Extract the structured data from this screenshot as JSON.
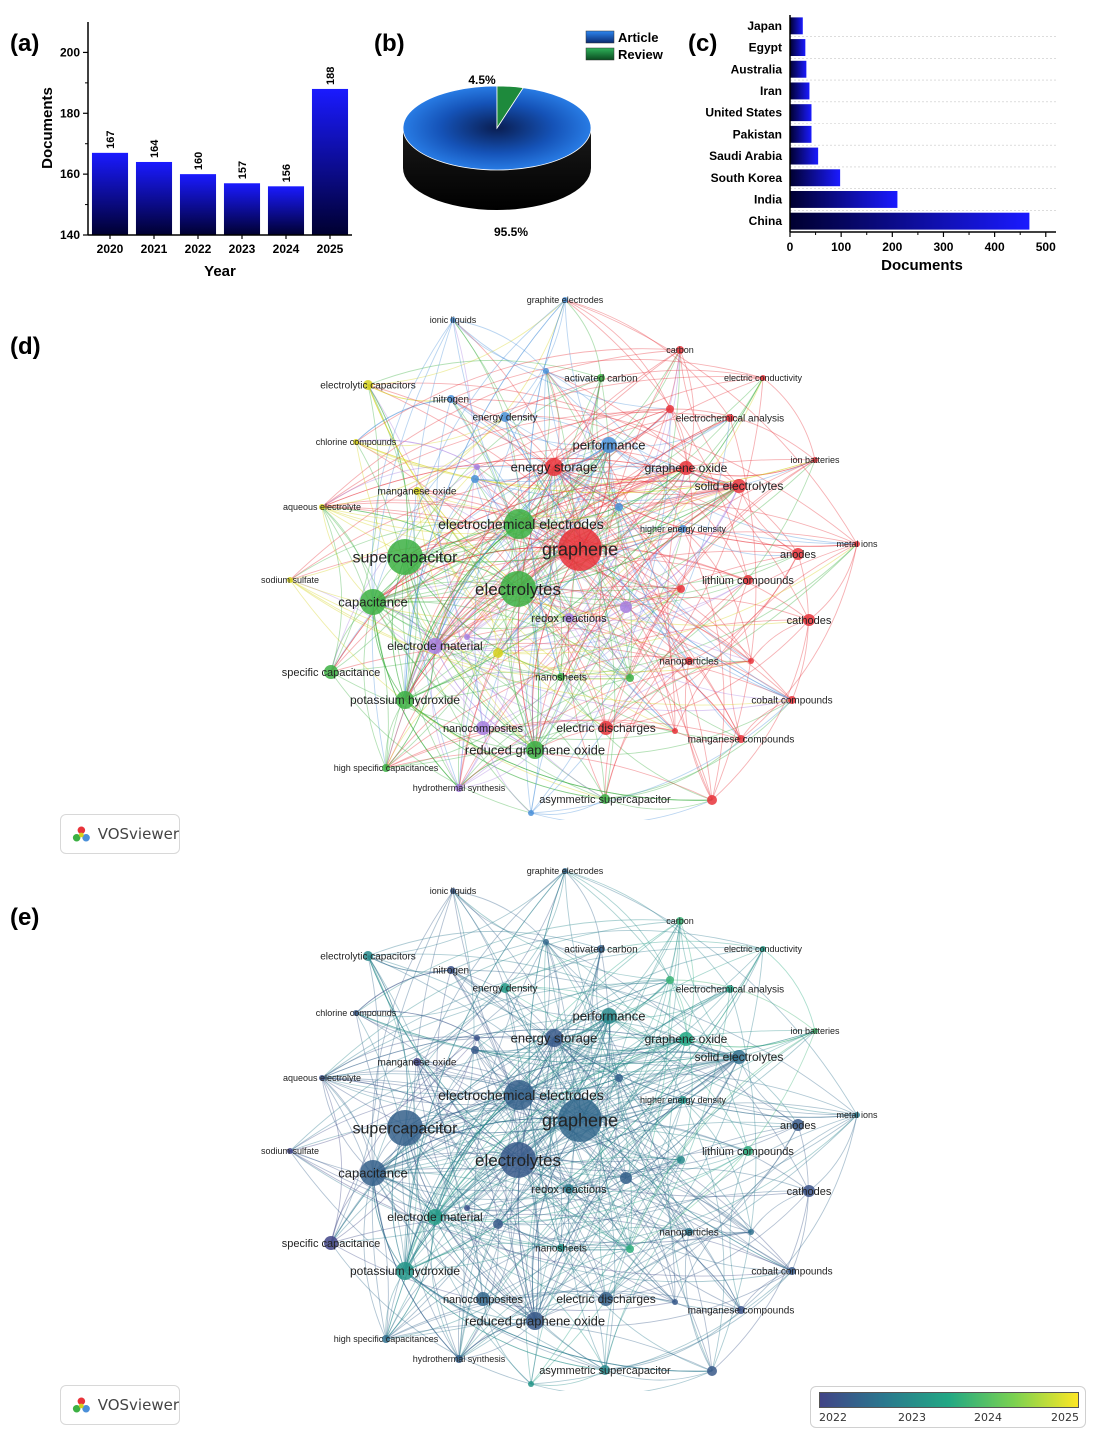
{
  "panels": {
    "a": "(a)",
    "b": "(b)",
    "c": "(c)",
    "d": "(d)",
    "e": "(e)"
  },
  "colors": {
    "bar_top": "#1a1aff",
    "bar_bottom": "#000030",
    "article": "#1565d8",
    "review": "#1e8a3c",
    "cluster_red": "#e8333a",
    "cluster_green": "#3cb043",
    "cluster_blue": "#4a90d9",
    "cluster_yellow": "#d4d11c",
    "cluster_purple": "#a77fe0",
    "viridis_2022": "#414487",
    "viridis_2023": "#2a788e",
    "viridis_2024": "#22a884",
    "viridis_2025": "#fde725"
  },
  "chart_data": [
    {
      "type": "bar",
      "categories": [
        "2020",
        "2021",
        "2022",
        "2023",
        "2024",
        "2025"
      ],
      "values": [
        167,
        164,
        160,
        157,
        156,
        188
      ],
      "xlabel": "Year",
      "ylabel": "Documents",
      "ylim": [
        140,
        210
      ],
      "yticks": [
        140,
        160,
        180,
        200
      ]
    },
    {
      "type": "pie",
      "labels": [
        "Article",
        "Review"
      ],
      "values": [
        95.5,
        4.5
      ],
      "value_labels": [
        "95.5%",
        "4.5%"
      ],
      "legend": "top-right"
    },
    {
      "type": "bar",
      "orientation": "horizontal",
      "categories": [
        "Japan",
        "Egypt",
        "Australia",
        "Iran",
        "United States",
        "Pakistan",
        "Saudi Arabia",
        "South Korea",
        "India",
        "China"
      ],
      "values": [
        25,
        30,
        32,
        38,
        42,
        42,
        55,
        98,
        210,
        468
      ],
      "xlabel": "Documents",
      "xlim": [
        0,
        520
      ],
      "xticks": [
        0,
        100,
        200,
        300,
        400,
        500
      ]
    }
  ],
  "network": {
    "logo_text": "VOSviewer",
    "colorbar_ticks": [
      "2022",
      "2023",
      "2024",
      "2025"
    ],
    "nodes": [
      {
        "label": "graphene",
        "c": "red",
        "y": 2022.5
      },
      {
        "label": "electrolytes",
        "c": "green",
        "y": 2022.3
      },
      {
        "label": "supercapacitor",
        "c": "green",
        "y": 2022.4
      },
      {
        "label": "electrochemical electrodes",
        "c": "green",
        "y": 2022.4
      },
      {
        "label": "capacitance",
        "c": "green",
        "y": 2022.4
      },
      {
        "label": "energy storage",
        "c": "red",
        "y": 2022.3
      },
      {
        "label": "performance",
        "c": "blue",
        "y": 2023.0
      },
      {
        "label": "graphene oxide",
        "c": "red",
        "y": 2023.5
      },
      {
        "label": "solid electrolytes",
        "c": "red",
        "y": 2022.6
      },
      {
        "label": "anodes",
        "c": "red",
        "y": 2022.3
      },
      {
        "label": "lithium compounds",
        "c": "red",
        "y": 2023.6
      },
      {
        "label": "cathodes",
        "c": "red",
        "y": 2022.2
      },
      {
        "label": "electrode material",
        "c": "purple",
        "y": 2023.3
      },
      {
        "label": "potassium hydroxide",
        "c": "green",
        "y": 2023.2
      },
      {
        "label": "specific capacitance",
        "c": "green",
        "y": 2021.9
      },
      {
        "label": "reduced graphene oxide",
        "c": "green",
        "y": 2022.3
      },
      {
        "label": "nanocomposites",
        "c": "purple",
        "y": 2022.5
      },
      {
        "label": "electric discharges",
        "c": "red",
        "y": 2022.4
      },
      {
        "label": "redox reactions",
        "c": "purple",
        "y": 2022.8
      },
      {
        "label": "nanosheets",
        "c": "green",
        "y": 2023.2
      },
      {
        "label": "nanoparticles",
        "c": "red",
        "y": 2022.7
      },
      {
        "label": "cobalt compounds",
        "c": "red",
        "y": 2022.3
      },
      {
        "label": "manganese compounds",
        "c": "red",
        "y": 2022.2
      },
      {
        "label": "asymmetric supercapacitor",
        "c": "green",
        "y": 2023.0
      },
      {
        "label": "hydrothermal synthesis",
        "c": "purple",
        "y": 2022.4
      },
      {
        "label": "high specific capacitances",
        "c": "green",
        "y": 2022.6
      },
      {
        "label": "sodium sulfate",
        "c": "yellow",
        "y": 2021.8
      },
      {
        "label": "aqueous electrolyte",
        "c": "yellow",
        "y": 2022.2
      },
      {
        "label": "manganese oxide",
        "c": "yellow",
        "y": 2022.0
      },
      {
        "label": "chlorine compounds",
        "c": "yellow",
        "y": 2022.3
      },
      {
        "label": "electrolytic capacitors",
        "c": "yellow",
        "y": 2023.0
      },
      {
        "label": "nitrogen",
        "c": "blue",
        "y": 2022.2
      },
      {
        "label": "energy density",
        "c": "blue",
        "y": 2023.3
      },
      {
        "label": "ionic liquids",
        "c": "blue",
        "y": 2022.3
      },
      {
        "label": "graphite electrodes",
        "c": "blue",
        "y": 2022.5
      },
      {
        "label": "activated carbon",
        "c": "green",
        "y": 2022.4
      },
      {
        "label": "carbon",
        "c": "red",
        "y": 2023.7
      },
      {
        "label": "electric conductivity",
        "c": "red",
        "y": 2023.3
      },
      {
        "label": "electrochemical analysis",
        "c": "red",
        "y": 2023.4
      },
      {
        "label": "ion batteries",
        "c": "red",
        "y": 2023.8
      },
      {
        "label": "higher energy density",
        "c": "blue",
        "y": 2023.2
      },
      {
        "label": "metal ions",
        "c": "red",
        "y": 2022.8
      },
      {
        "label": "",
        "c": "blue",
        "y": 2022.5
      },
      {
        "label": "",
        "c": "blue",
        "y": 2022.3
      },
      {
        "label": "",
        "c": "purple",
        "y": 2022.2
      },
      {
        "label": "",
        "c": "purple",
        "y": 2022.4
      },
      {
        "label": "",
        "c": "purple",
        "y": 2022.2
      },
      {
        "label": "",
        "c": "yellow",
        "y": 2022.3
      },
      {
        "label": "",
        "c": "red",
        "y": 2023.7
      },
      {
        "label": "",
        "c": "red",
        "y": 2023.0
      },
      {
        "label": "",
        "c": "red",
        "y": 2022.3
      },
      {
        "label": "",
        "c": "red",
        "y": 2022.3
      },
      {
        "label": "",
        "c": "red",
        "y": 2022.6
      },
      {
        "label": "",
        "c": "green",
        "y": 2023.6
      },
      {
        "label": "",
        "c": "blue",
        "y": 2022.4
      },
      {
        "label": "",
        "c": "blue",
        "y": 2023.2
      }
    ]
  }
}
